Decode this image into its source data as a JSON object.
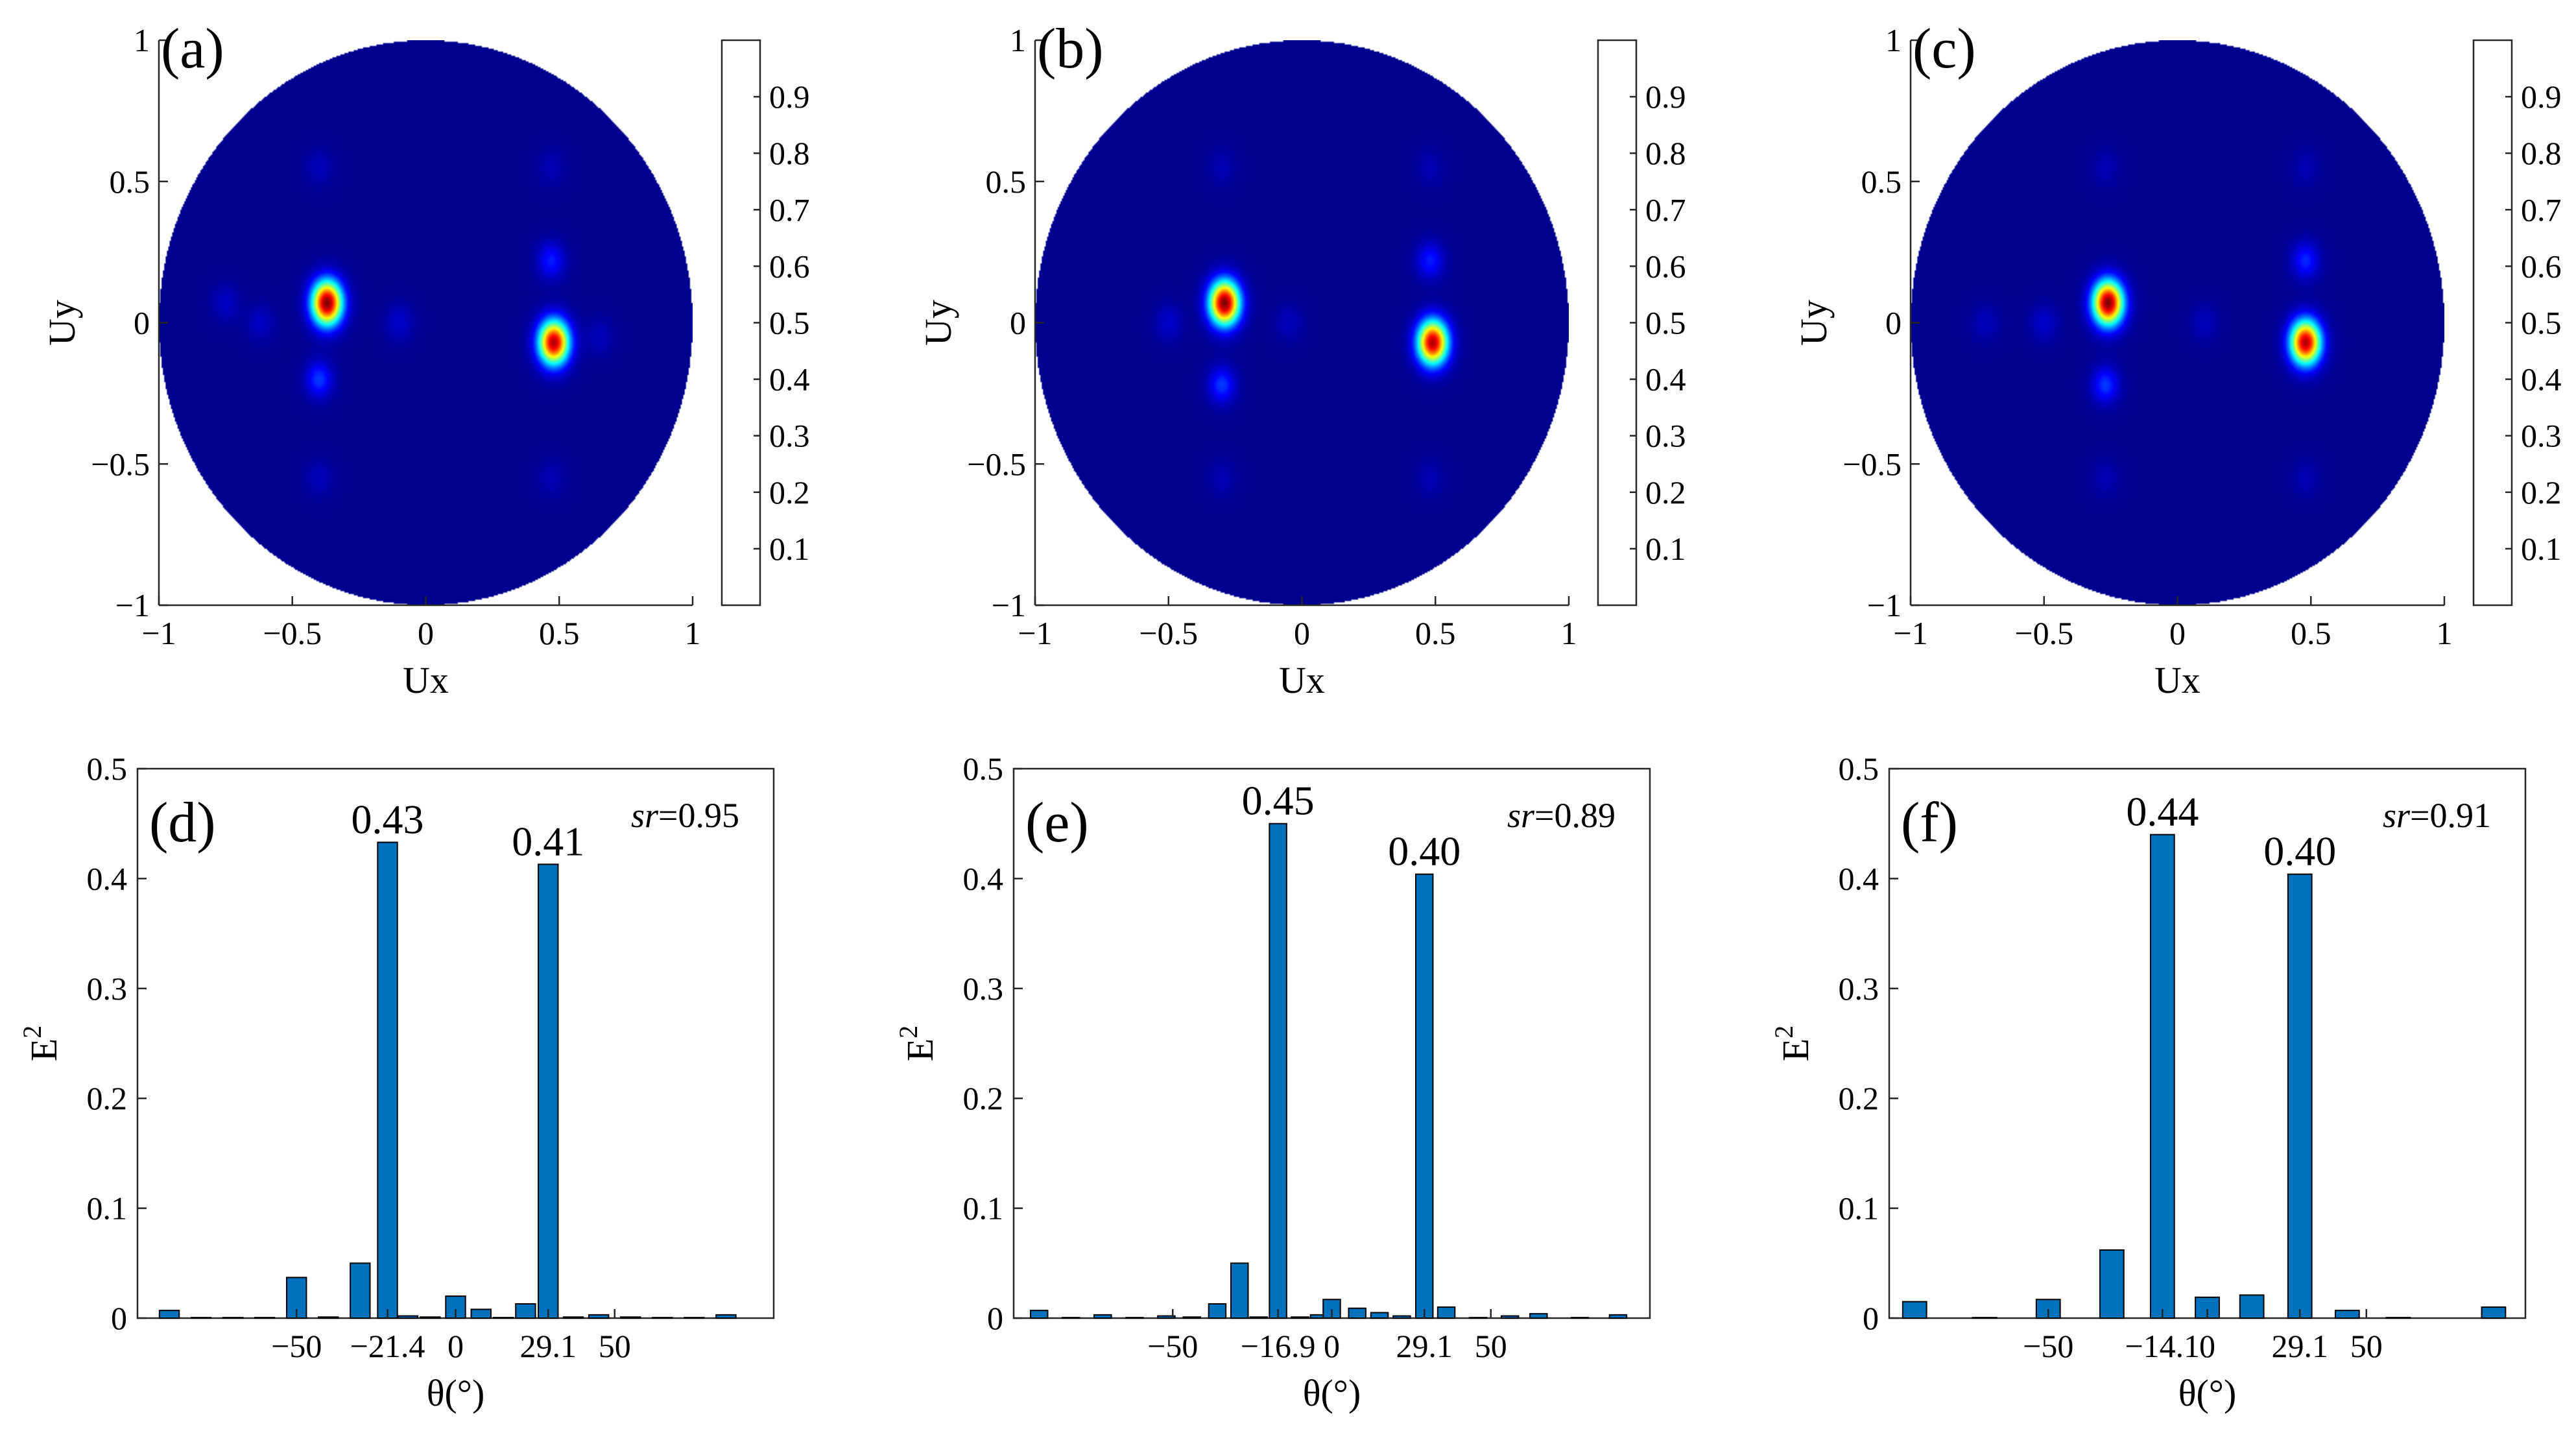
{
  "colors": {
    "background_field": "#00008f",
    "bar_fill": "#0072BD",
    "colormap": [
      "#00008f",
      "#0000ff",
      "#0080ff",
      "#00ffff",
      "#80ff80",
      "#ffff00",
      "#ff8000",
      "#ff0000",
      "#800000"
    ]
  },
  "colorbar": {
    "ticks": [
      0.1,
      0.2,
      0.3,
      0.4,
      0.5,
      0.6,
      0.7,
      0.8,
      0.9
    ],
    "tick_labels": [
      "0.1",
      "0.2",
      "0.3",
      "0.4",
      "0.5",
      "0.6",
      "0.7",
      "0.8",
      "0.9"
    ],
    "range": [
      0,
      1
    ]
  },
  "chart_data": [
    {
      "type": "heatmap",
      "panel_label": "(a)",
      "xlabel": "Ux",
      "ylabel": "Uy",
      "xlim": [
        -1,
        1
      ],
      "ylim": [
        -1,
        1
      ],
      "x_ticks": [
        -1,
        -0.5,
        0,
        0.5,
        1
      ],
      "x_tick_labels": [
        "−1",
        "−0.5",
        "0",
        "0.5",
        "1"
      ],
      "y_ticks": [
        -1,
        -0.5,
        0,
        0.5,
        1
      ],
      "y_tick_labels": [
        "−1",
        "−0.5",
        "0",
        "0.5",
        "1"
      ],
      "peaks": [
        {
          "ux": -0.37,
          "uy": 0.07,
          "value": 1.0
        },
        {
          "ux": 0.48,
          "uy": -0.07,
          "value": 0.95
        },
        {
          "ux": -0.4,
          "uy": -0.2,
          "value": 0.18
        },
        {
          "ux": 0.47,
          "uy": 0.22,
          "value": 0.15
        },
        {
          "ux": -0.4,
          "uy": 0.55,
          "value": 0.05
        },
        {
          "ux": -0.4,
          "uy": -0.55,
          "value": 0.05
        },
        {
          "ux": 0.47,
          "uy": 0.55,
          "value": 0.04
        },
        {
          "ux": 0.47,
          "uy": -0.55,
          "value": 0.04
        },
        {
          "ux": -0.75,
          "uy": 0.07,
          "value": 0.06
        },
        {
          "ux": -0.62,
          "uy": 0.0,
          "value": 0.06
        },
        {
          "ux": -0.1,
          "uy": 0.0,
          "value": 0.07
        },
        {
          "ux": 0.65,
          "uy": -0.05,
          "value": 0.05
        }
      ]
    },
    {
      "type": "heatmap",
      "panel_label": "(b)",
      "xlabel": "Ux",
      "ylabel": "Uy",
      "xlim": [
        -1,
        1
      ],
      "ylim": [
        -1,
        1
      ],
      "x_ticks": [
        -1,
        -0.5,
        0,
        0.5,
        1
      ],
      "x_tick_labels": [
        "−1",
        "−0.5",
        "0",
        "0.5",
        "1"
      ],
      "y_ticks": [
        -1,
        -0.5,
        0,
        0.5,
        1
      ],
      "y_tick_labels": [
        "−1",
        "−0.5",
        "0",
        "0.5",
        "1"
      ],
      "peaks": [
        {
          "ux": -0.29,
          "uy": 0.07,
          "value": 1.0
        },
        {
          "ux": 0.49,
          "uy": -0.07,
          "value": 0.95
        },
        {
          "ux": -0.3,
          "uy": -0.22,
          "value": 0.18
        },
        {
          "ux": 0.48,
          "uy": 0.22,
          "value": 0.15
        },
        {
          "ux": -0.3,
          "uy": 0.55,
          "value": 0.04
        },
        {
          "ux": -0.3,
          "uy": -0.55,
          "value": 0.04
        },
        {
          "ux": 0.48,
          "uy": 0.55,
          "value": 0.04
        },
        {
          "ux": 0.48,
          "uy": -0.55,
          "value": 0.04
        },
        {
          "ux": -0.5,
          "uy": 0.0,
          "value": 0.07
        },
        {
          "ux": -0.05,
          "uy": 0.0,
          "value": 0.05
        }
      ]
    },
    {
      "type": "heatmap",
      "panel_label": "(c)",
      "xlabel": "Ux",
      "ylabel": "Uy",
      "xlim": [
        -1,
        1
      ],
      "ylim": [
        -1,
        1
      ],
      "x_ticks": [
        -1,
        -0.5,
        0,
        0.5,
        1
      ],
      "x_tick_labels": [
        "−1",
        "−0.5",
        "0",
        "0.5",
        "1"
      ],
      "y_ticks": [
        -1,
        -0.5,
        0,
        0.5,
        1
      ],
      "y_tick_labels": [
        "−1",
        "−0.5",
        "0",
        "0.5",
        "1"
      ],
      "peaks": [
        {
          "ux": -0.26,
          "uy": 0.07,
          "value": 1.0
        },
        {
          "ux": 0.48,
          "uy": -0.07,
          "value": 0.95
        },
        {
          "ux": -0.27,
          "uy": -0.22,
          "value": 0.18
        },
        {
          "ux": 0.48,
          "uy": 0.22,
          "value": 0.16
        },
        {
          "ux": -0.27,
          "uy": 0.55,
          "value": 0.04
        },
        {
          "ux": -0.27,
          "uy": -0.55,
          "value": 0.04
        },
        {
          "ux": 0.48,
          "uy": 0.55,
          "value": 0.04
        },
        {
          "ux": 0.48,
          "uy": -0.55,
          "value": 0.04
        },
        {
          "ux": -0.5,
          "uy": 0.0,
          "value": 0.07
        },
        {
          "ux": -0.72,
          "uy": 0.0,
          "value": 0.05
        },
        {
          "ux": 0.1,
          "uy": 0.0,
          "value": 0.05
        }
      ]
    },
    {
      "type": "bar",
      "panel_label": "(d)",
      "xlabel": "θ(°)",
      "ylabel": "E",
      "ylabel_superscript": "2",
      "xlim": [
        -100,
        100
      ],
      "ylim": [
        0,
        0.5
      ],
      "x_ticks": [
        -50,
        -21.4,
        0,
        29.1,
        50
      ],
      "x_tick_labels": [
        "−50",
        "−21.4",
        "0",
        "29.1",
        "50"
      ],
      "y_ticks": [
        0,
        0.1,
        0.2,
        0.3,
        0.4,
        0.5
      ],
      "y_tick_labels": [
        "0",
        "0.1",
        "0.2",
        "0.3",
        "0.4",
        "0.5"
      ],
      "bar_width": 6.2,
      "sr_italic": "sr",
      "sr_value": "=0.95",
      "annotations": [
        {
          "x": -21.4,
          "y": 0.433,
          "text": "0.43"
        },
        {
          "x": 29.1,
          "y": 0.413,
          "text": "0.41"
        }
      ],
      "x": [
        -90,
        -80,
        -70,
        -60,
        -50,
        -40,
        -30,
        -21.4,
        -15,
        -8,
        0,
        8,
        15,
        22,
        29.1,
        37,
        45,
        55,
        65,
        75,
        85
      ],
      "values": [
        0.007,
        0.0005,
        0.0005,
        0.0005,
        0.037,
        0.001,
        0.05,
        0.433,
        0.002,
        0.001,
        0.02,
        0.008,
        0.0005,
        0.013,
        0.413,
        0.001,
        0.003,
        0.001,
        0.0005,
        0.0005,
        0.003
      ]
    },
    {
      "type": "bar",
      "panel_label": "(e)",
      "xlabel": "θ(°)",
      "ylabel": "E",
      "ylabel_superscript": "2",
      "xlim": [
        -100,
        100
      ],
      "ylim": [
        0,
        0.5
      ],
      "x_ticks": [
        -50,
        -16.9,
        0,
        29.1,
        50
      ],
      "x_tick_labels": [
        "−50",
        "−16.9",
        "0",
        "29.1",
        "50"
      ],
      "y_ticks": [
        0,
        0.1,
        0.2,
        0.3,
        0.4,
        0.5
      ],
      "y_tick_labels": [
        "0",
        "0.1",
        "0.2",
        "0.3",
        "0.4",
        "0.5"
      ],
      "bar_width": 5.4,
      "sr_italic": "sr",
      "sr_value": "=0.89",
      "annotations": [
        {
          "x": -16.9,
          "y": 0.45,
          "text": "0.45"
        },
        {
          "x": 29.1,
          "y": 0.404,
          "text": "0.40"
        }
      ],
      "x": [
        -92,
        -82,
        -72,
        -62,
        -52,
        -44,
        -36,
        -29,
        -23,
        -16.9,
        -10,
        -4,
        0,
        8,
        15,
        22,
        29.1,
        36,
        46,
        56,
        65,
        78,
        90
      ],
      "values": [
        0.007,
        0.0005,
        0.003,
        0.0005,
        0.002,
        0.001,
        0.013,
        0.05,
        0.001,
        0.45,
        0.001,
        0.003,
        0.017,
        0.009,
        0.005,
        0.002,
        0.404,
        0.01,
        0.0005,
        0.002,
        0.004,
        0.0005,
        0.003
      ]
    },
    {
      "type": "bar",
      "panel_label": "(f)",
      "xlabel": "θ(°)",
      "ylabel": "E",
      "ylabel_superscript": "2",
      "xlim": [
        -100,
        100
      ],
      "ylim": [
        0,
        0.5
      ],
      "x_ticks": [
        -50,
        -14.1,
        0,
        29.1,
        50
      ],
      "x_tick_labels": [
        "−50",
        "−14.1",
        "0",
        "29.1",
        "50"
      ],
      "y_ticks": [
        0,
        0.1,
        0.2,
        0.3,
        0.4,
        0.5
      ],
      "y_tick_labels": [
        "0",
        "0.1",
        "0.2",
        "0.3",
        "0.4",
        "0.5"
      ],
      "bar_width": 7.5,
      "sr_italic": "sr",
      "sr_value": "=0.91",
      "annotations": [
        {
          "x": -14.1,
          "y": 0.44,
          "text": "0.44"
        },
        {
          "x": 29.1,
          "y": 0.404,
          "text": "0.40"
        }
      ],
      "x": [
        -92,
        -70,
        -50,
        -30,
        -14.1,
        0,
        14,
        29.1,
        44,
        60,
        90
      ],
      "values": [
        0.015,
        0.0005,
        0.017,
        0.062,
        0.44,
        0.019,
        0.021,
        0.404,
        0.007,
        0.0005,
        0.01
      ]
    }
  ]
}
